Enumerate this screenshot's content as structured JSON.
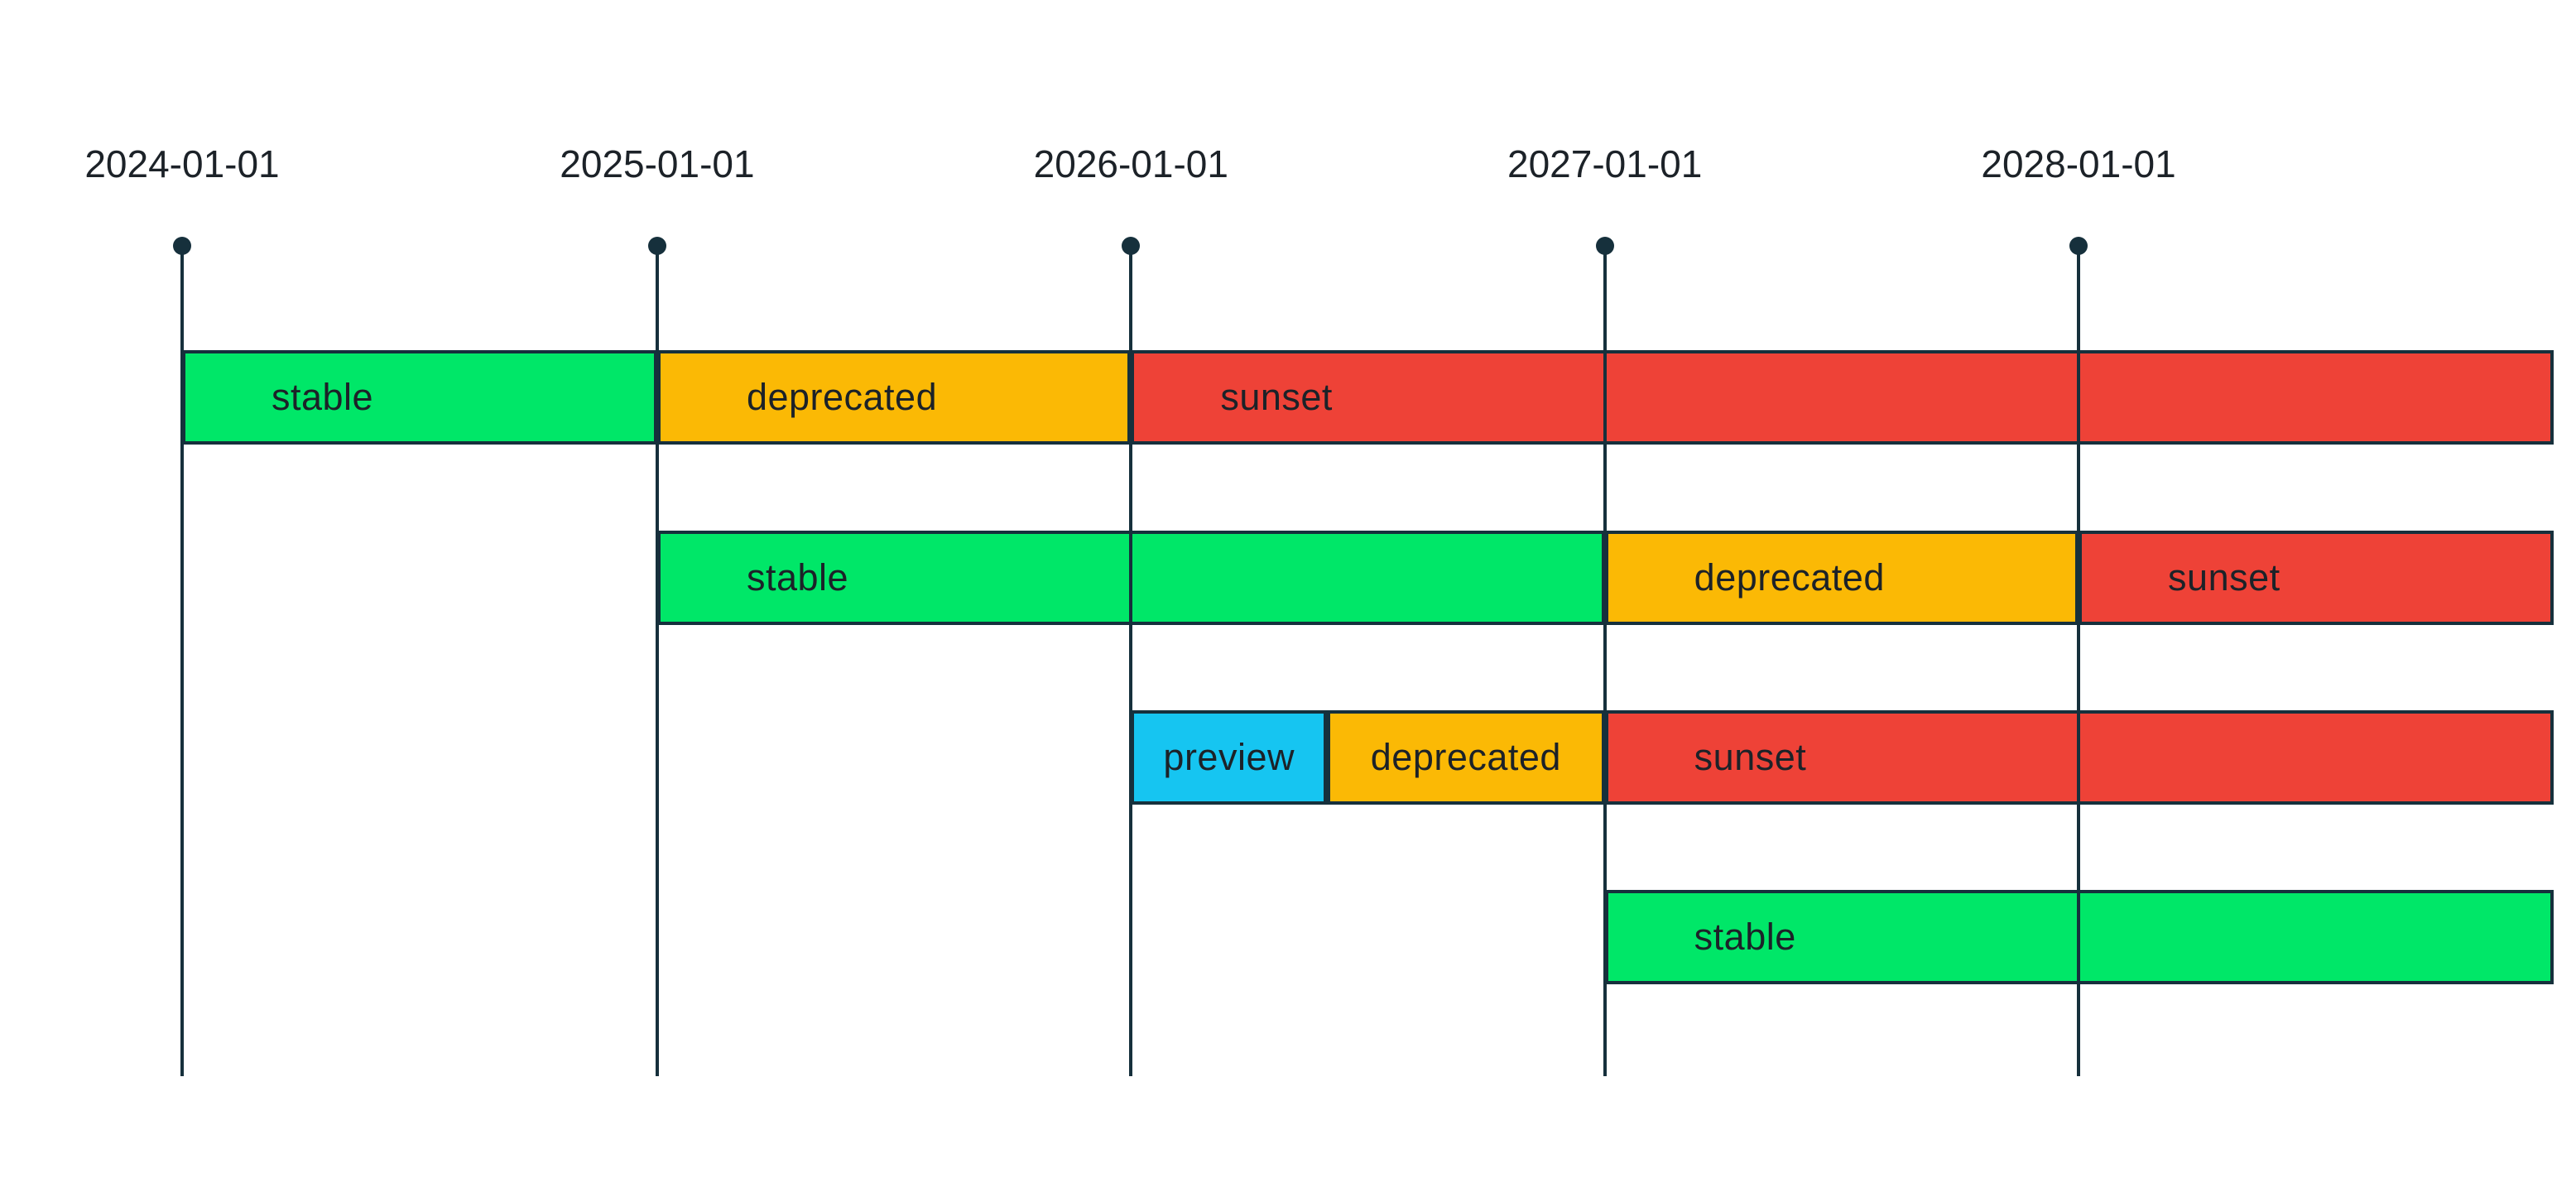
{
  "background": "#FFFFFF",
  "ink_color": "#16303C",
  "text_color": "#1C2228",
  "chart_data": {
    "type": "gantt-timeline",
    "x_axis": {
      "ticks": [
        "2024-01-01",
        "2025-01-01",
        "2026-01-01",
        "2027-01-01",
        "2028-01-01"
      ],
      "range": [
        "2024-01-01",
        "2029-01-01"
      ],
      "gridlines": true
    },
    "legend": "none",
    "state_colors": {
      "stable": "#00E768",
      "deprecated": "#FBB905",
      "sunset": "#EE4237",
      "preview": "#16C5F1"
    },
    "rows": [
      {
        "segments": [
          {
            "label": "stable",
            "state": "stable",
            "start": "2024-01-01",
            "end": "2025-01-01"
          },
          {
            "label": "deprecated",
            "state": "deprecated",
            "start": "2025-01-01",
            "end": "2026-01-01"
          },
          {
            "label": "sunset",
            "state": "sunset",
            "start": "2026-01-01",
            "end": "2029-01-01"
          }
        ]
      },
      {
        "segments": [
          {
            "label": "stable",
            "state": "stable",
            "start": "2025-01-01",
            "end": "2027-01-01"
          },
          {
            "label": "deprecated",
            "state": "deprecated",
            "start": "2027-01-01",
            "end": "2028-01-01"
          },
          {
            "label": "sunset",
            "state": "sunset",
            "start": "2028-01-01",
            "end": "2029-01-01"
          }
        ]
      },
      {
        "segments": [
          {
            "label": "preview",
            "state": "preview",
            "start": "2026-01-01",
            "end": "2026-06-01"
          },
          {
            "label": "deprecated",
            "state": "deprecated",
            "start": "2026-06-01",
            "end": "2027-01-01"
          },
          {
            "label": "sunset",
            "state": "sunset",
            "start": "2027-01-01",
            "end": "2029-01-01"
          }
        ]
      },
      {
        "segments": [
          {
            "label": "stable",
            "state": "stable",
            "start": "2027-01-01",
            "end": "2029-01-01"
          }
        ]
      }
    ]
  }
}
